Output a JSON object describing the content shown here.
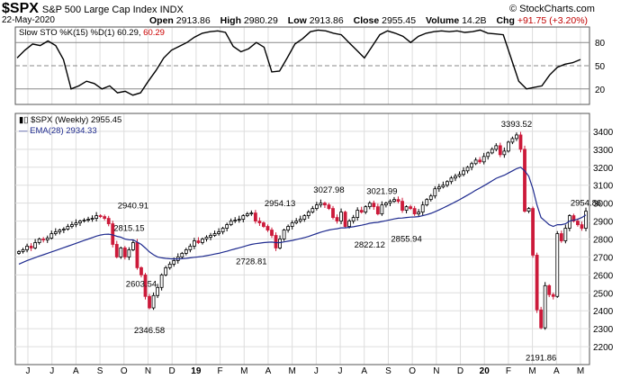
{
  "header": {
    "symbol": "$SPX",
    "description": "S&P 500 Large Cap Index INDX",
    "date": "22-May-2020",
    "watermark": "© StockCharts.com",
    "open_label": "Open",
    "open": "2913.86",
    "high_label": "High",
    "high": "2980.29",
    "low_label": "Low",
    "low": "2913.86",
    "close_label": "Close",
    "close": "2955.45",
    "volume_label": "Volume",
    "volume": "14.2B",
    "chg_label": "Chg",
    "chg": "+91.75 (+3.20%)"
  },
  "colors": {
    "up": "#000000",
    "down": "#cc1a3a",
    "ema": "#1f2b8f",
    "stoch": "#000000",
    "stoch_value": "#cc0000",
    "grid": "#dddddd",
    "level_line": "#888888"
  },
  "chart_data": [
    {
      "type": "line",
      "title": "Slow STO %K(15) %D(1) 60.29,",
      "last_value": "60.29",
      "ylim": [
        0,
        100
      ],
      "yticks": [
        20,
        50,
        80
      ],
      "reference_lines": [
        20,
        50,
        80
      ],
      "series": [
        {
          "values": [
            60,
            70,
            78,
            76,
            82,
            76,
            58,
            20,
            24,
            30,
            27,
            20,
            24,
            15,
            17,
            12,
            15,
            30,
            44,
            60,
            70,
            75,
            80,
            87,
            92,
            94,
            95,
            93,
            75,
            68,
            72,
            80,
            74,
            42,
            43,
            60,
            78,
            85,
            94,
            96,
            95,
            92,
            90,
            80,
            70,
            60,
            75,
            90,
            95,
            92,
            88,
            80,
            88,
            92,
            94,
            95,
            94,
            95,
            93,
            94,
            96,
            92,
            91,
            90,
            60,
            30,
            20,
            22,
            24,
            38,
            48,
            52,
            54,
            58
          ]
        }
      ]
    },
    {
      "type": "candlestick",
      "title": "$SPX (Weekly) 2955.45",
      "legend": [
        {
          "name": "EMA(28) 2934.33"
        }
      ],
      "x_labels": [
        "J",
        "J",
        "A",
        "S",
        "O",
        "N",
        "D",
        "19",
        "F",
        "M",
        "A",
        "M",
        "J",
        "J",
        "A",
        "S",
        "O",
        "N",
        "D",
        "20",
        "F",
        "M",
        "A",
        "M"
      ],
      "ylim": [
        2100,
        3500
      ],
      "yticks": [
        2200,
        2300,
        2400,
        2500,
        2600,
        2700,
        2800,
        2900,
        3000,
        3100,
        3200,
        3300,
        3400
      ],
      "annotations": [
        {
          "text": "2940.91",
          "value": 2940.91
        },
        {
          "text": "2815.15",
          "value": 2815.15
        },
        {
          "text": "2603.54",
          "value": 2603.54
        },
        {
          "text": "2346.58",
          "value": 2346.58
        },
        {
          "text": "2954.13",
          "value": 2954.13
        },
        {
          "text": "2728.81",
          "value": 2728.81
        },
        {
          "text": "3027.98",
          "value": 3027.98
        },
        {
          "text": "2822.12",
          "value": 2822.12
        },
        {
          "text": "3021.99",
          "value": 3021.99
        },
        {
          "text": "2855.94",
          "value": 2855.94
        },
        {
          "text": "3393.52",
          "value": 3393.52
        },
        {
          "text": "2191.86",
          "value": 2191.86
        },
        {
          "text": "2954.86",
          "value": 2954.86
        }
      ],
      "closes": [
        2730,
        2740,
        2760,
        2750,
        2780,
        2800,
        2795,
        2805,
        2830,
        2840,
        2850,
        2855,
        2870,
        2880,
        2890,
        2900,
        2905,
        2910,
        2915,
        2930,
        2925,
        2915,
        2885,
        2770,
        2700,
        2750,
        2700,
        2740,
        2780,
        2640,
        2600,
        2480,
        2416,
        2485,
        2530,
        2600,
        2640,
        2660,
        2680,
        2700,
        2720,
        2740,
        2760,
        2790,
        2780,
        2800,
        2810,
        2820,
        2830,
        2840,
        2860,
        2880,
        2900,
        2905,
        2910,
        2930,
        2940,
        2945,
        2900,
        2890,
        2870,
        2850,
        2820,
        2750,
        2800,
        2850,
        2870,
        2890,
        2900,
        2910,
        2930,
        2950,
        2970,
        2990,
        3000,
        2990,
        2970,
        2920,
        2900,
        2950,
        2870,
        2900,
        2920,
        2960,
        2950,
        2980,
        3000,
        2980,
        2940,
        2990,
        3000,
        3010,
        3020,
        3010,
        2960,
        2980,
        2970,
        2940,
        2950,
        2990,
        3020,
        3040,
        3080,
        3090,
        3100,
        3120,
        3140,
        3150,
        3160,
        3180,
        3200,
        3220,
        3240,
        3230,
        3260,
        3280,
        3300,
        3320,
        3270,
        3290,
        3340,
        3360,
        3380,
        3300,
        2955,
        2970,
        2710,
        2405,
        2305,
        2540,
        2490,
        2480,
        2830,
        2790,
        2860,
        2930,
        2900,
        2880,
        2860,
        2955
      ],
      "ema": [
        2660,
        2670,
        2680,
        2688,
        2696,
        2705,
        2712,
        2720,
        2728,
        2736,
        2744,
        2752,
        2760,
        2768,
        2776,
        2784,
        2792,
        2800,
        2808,
        2816,
        2822,
        2826,
        2827,
        2823,
        2815,
        2810,
        2800,
        2796,
        2795,
        2783,
        2770,
        2750,
        2728,
        2712,
        2700,
        2695,
        2692,
        2690,
        2689,
        2689,
        2690,
        2692,
        2695,
        2698,
        2700,
        2703,
        2707,
        2711,
        2716,
        2720,
        2726,
        2732,
        2739,
        2745,
        2751,
        2757,
        2764,
        2770,
        2774,
        2777,
        2780,
        2782,
        2783,
        2780,
        2780,
        2784,
        2788,
        2792,
        2797,
        2802,
        2808,
        2814,
        2822,
        2830,
        2838,
        2844,
        2850,
        2854,
        2857,
        2862,
        2862,
        2865,
        2868,
        2873,
        2877,
        2882,
        2888,
        2891,
        2893,
        2898,
        2902,
        2907,
        2912,
        2916,
        2917,
        2920,
        2922,
        2923,
        2925,
        2930,
        2936,
        2943,
        2952,
        2962,
        2973,
        2984,
        2995,
        3007,
        3019,
        3032,
        3045,
        3058,
        3072,
        3084,
        3097,
        3110,
        3124,
        3138,
        3147,
        3156,
        3168,
        3180,
        3192,
        3200,
        3180,
        3150,
        3080,
        2990,
        2920,
        2900,
        2880,
        2870,
        2880,
        2880,
        2885,
        2900,
        2905,
        2910,
        2920,
        2934
      ],
      "type_name": "candlestick"
    }
  ]
}
